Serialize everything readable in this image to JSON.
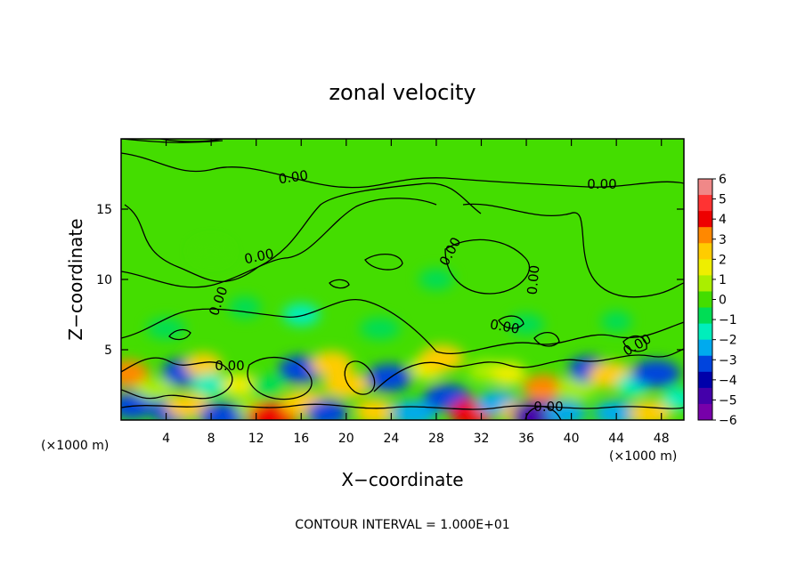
{
  "chart_data": {
    "type": "heatmap",
    "title": "zonal velocity",
    "xlabel": "X−coordinate",
    "ylabel": "Z−coordinate",
    "x_unit": "(×1000 m)",
    "y_unit": "(×1000 m)",
    "xlim": [
      0,
      50
    ],
    "ylim": [
      0,
      20
    ],
    "x_ticks": [
      4,
      8,
      12,
      16,
      20,
      24,
      28,
      32,
      36,
      40,
      44,
      48
    ],
    "y_ticks": [
      5,
      10,
      15
    ],
    "colorbar": {
      "ticks": [
        "6",
        "5",
        "4",
        "3",
        "2",
        "1",
        "0",
        "−1",
        "−2",
        "−3",
        "−4",
        "−5",
        "−6"
      ],
      "range": [
        -6,
        6
      ],
      "colors": [
        "#f08888",
        "#ff3333",
        "#ee0000",
        "#ff8800",
        "#ffcc00",
        "#eeee00",
        "#aaee00",
        "#44dd00",
        "#00dd55",
        "#00eebb",
        "#00aaee",
        "#0044dd",
        "#0000aa",
        "#4400aa",
        "#7700aa"
      ]
    },
    "contour_labels": [
      "0.00",
      "0.00",
      "0.00",
      "0.00",
      "0.00",
      "0.00",
      "0.00",
      "0.00",
      "0.00",
      "0.00"
    ],
    "blobs": [
      {
        "x": 0.6,
        "z": 3.3,
        "v": 3.5
      },
      {
        "x": 1.0,
        "z": 1.0,
        "v": -3.0
      },
      {
        "x": 3.0,
        "z": 2.2,
        "v": 0.8
      },
      {
        "x": 4.5,
        "z": 0.6,
        "v": -3.2
      },
      {
        "x": 5.7,
        "z": 3.4,
        "v": -3.8
      },
      {
        "x": 6.0,
        "z": 1.0,
        "v": 2.5
      },
      {
        "x": 7.3,
        "z": 3.9,
        "v": 2.3
      },
      {
        "x": 8.0,
        "z": 2.5,
        "v": -1.6
      },
      {
        "x": 9.0,
        "z": 0.3,
        "v": -3.0
      },
      {
        "x": 10.5,
        "z": 2.5,
        "v": 1.8
      },
      {
        "x": 11.8,
        "z": 0.8,
        "v": 0.6
      },
      {
        "x": 13.5,
        "z": 0.3,
        "v": 4.0
      },
      {
        "x": 13.0,
        "z": 2.4,
        "v": -1.2
      },
      {
        "x": 16.0,
        "z": 3.6,
        "v": -3.5
      },
      {
        "x": 16.3,
        "z": 1.2,
        "v": 3.0
      },
      {
        "x": 18.3,
        "z": 0.5,
        "v": -3.3
      },
      {
        "x": 18.7,
        "z": 4.0,
        "v": 2.5
      },
      {
        "x": 20.0,
        "z": 2.5,
        "v": 2.8
      },
      {
        "x": 22.5,
        "z": 0.6,
        "v": 2.6
      },
      {
        "x": 23.8,
        "z": 3.0,
        "v": -3.5
      },
      {
        "x": 26.0,
        "z": 0.5,
        "v": -2.8
      },
      {
        "x": 27.2,
        "z": 3.7,
        "v": 1.6
      },
      {
        "x": 28.5,
        "z": 4.4,
        "v": 3.0
      },
      {
        "x": 29.0,
        "z": 1.6,
        "v": -3.2
      },
      {
        "x": 31.2,
        "z": 0.5,
        "v": 4.2
      },
      {
        "x": 32.4,
        "z": 3.5,
        "v": 1.2
      },
      {
        "x": 33.5,
        "z": 1.2,
        "v": -2.3
      },
      {
        "x": 34.4,
        "z": 3.3,
        "v": 1.6
      },
      {
        "x": 35.5,
        "z": 0.5,
        "v": 2.2
      },
      {
        "x": 37.2,
        "z": 0.3,
        "v": -5.5
      },
      {
        "x": 37.5,
        "z": 2.3,
        "v": 3.2
      },
      {
        "x": 39.5,
        "z": 0.5,
        "v": -2.3
      },
      {
        "x": 40.5,
        "z": 2.3,
        "v": 1.2
      },
      {
        "x": 41.5,
        "z": 3.6,
        "v": -3.0
      },
      {
        "x": 43.5,
        "z": 3.2,
        "v": 3.0
      },
      {
        "x": 44.0,
        "z": 0.5,
        "v": -2.5
      },
      {
        "x": 45.5,
        "z": 2.5,
        "v": -1.4
      },
      {
        "x": 47.0,
        "z": 0.5,
        "v": 2.6
      },
      {
        "x": 47.5,
        "z": 3.3,
        "v": -3.6
      },
      {
        "x": 49.5,
        "z": 1.5,
        "v": -1.5
      },
      {
        "x": 16.0,
        "z": 7.5,
        "v": -1.3
      },
      {
        "x": 23.0,
        "z": 6.5,
        "v": -1.2
      },
      {
        "x": 11.0,
        "z": 8.0,
        "v": -0.9
      },
      {
        "x": 36.0,
        "z": 6.8,
        "v": -0.9
      },
      {
        "x": 4.0,
        "z": 6.5,
        "v": -0.8
      },
      {
        "x": 44.0,
        "z": 7.0,
        "v": -0.6
      },
      {
        "x": 28.0,
        "z": 10.0,
        "v": -0.7
      },
      {
        "x": 8.0,
        "z": 12.0,
        "v": -0.4
      }
    ]
  },
  "footer": {
    "xunit_left": "(×1000 m)",
    "xunit_right": "(×1000 m)",
    "contour_interval": "CONTOUR INTERVAL = 1.000E+01"
  }
}
